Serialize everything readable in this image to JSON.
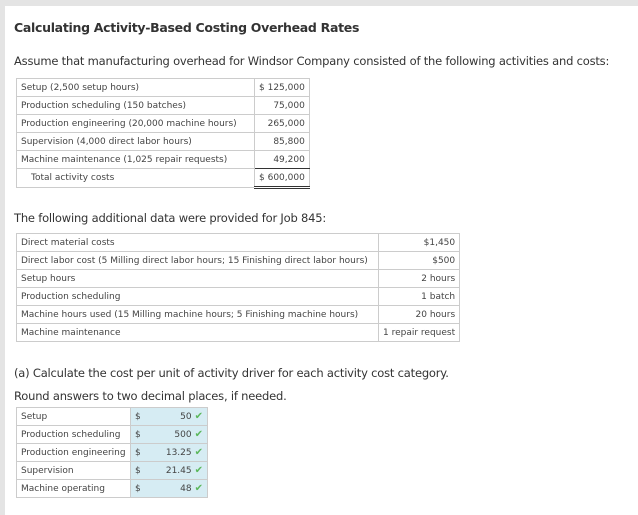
{
  "title": "Calculating Activity-Based Costing Overhead Rates",
  "intro": "Assume that manufacturing overhead for Windsor Company consisted of the following activities and costs:",
  "activities": [
    {
      "label": "Setup (2,500 setup hours)",
      "value": "$ 125,000"
    },
    {
      "label": "Production scheduling (150 batches)",
      "value": "75,000"
    },
    {
      "label": "Production engineering (20,000 machine hours)",
      "value": "265,000"
    },
    {
      "label": "Supervision (4,000 direct labor hours)",
      "value": "85,800"
    },
    {
      "label": "Machine maintenance (1,025 repair requests)",
      "value": "49,200"
    },
    {
      "label": "Total activity costs",
      "value": "$ 600,000"
    }
  ],
  "additional_intro": "The following additional data were provided for Job 845:",
  "job": [
    {
      "label": "Direct material costs",
      "value": "$1,450"
    },
    {
      "label": "Direct labor cost (5 Milling direct labor hours; 15 Finishing direct labor hours)",
      "value": "$500"
    },
    {
      "label": "Setup hours",
      "value": "2 hours"
    },
    {
      "label": "Production scheduling",
      "value": "1 batch"
    },
    {
      "label": "Machine hours used (15 Milling machine hours; 5 Finishing machine hours)",
      "value": "20 hours"
    },
    {
      "label": "Machine maintenance",
      "value": "1 repair request"
    }
  ],
  "question": "(a) Calculate the cost per unit of activity driver for each activity cost category.",
  "instruction": "Round answers to two decimal places, if needed.",
  "answers": [
    {
      "label": "Setup",
      "currency": "$",
      "value": "50",
      "status": "correct"
    },
    {
      "label": "Production scheduling",
      "currency": "$",
      "value": "500",
      "status": "correct"
    },
    {
      "label": "Production engineering",
      "currency": "$",
      "value": "13.25",
      "status": "correct"
    },
    {
      "label": "Supervision",
      "currency": "$",
      "value": "21.45",
      "status": "correct"
    },
    {
      "label": "Machine operating",
      "currency": "$",
      "value": "48",
      "status": "correct"
    }
  ],
  "colors": {
    "answer_bg": "#d6ecf3",
    "check": "#5cb85c"
  },
  "icons": {
    "check": "check-icon"
  }
}
